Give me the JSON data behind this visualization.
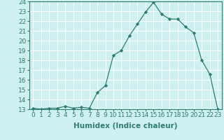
{
  "x": [
    0,
    1,
    2,
    3,
    4,
    5,
    6,
    7,
    8,
    9,
    10,
    11,
    12,
    13,
    14,
    15,
    16,
    17,
    18,
    19,
    20,
    21,
    22,
    23
  ],
  "y": [
    13.1,
    13.0,
    13.1,
    13.1,
    13.3,
    13.1,
    13.2,
    13.1,
    14.7,
    15.4,
    18.5,
    19.0,
    20.5,
    21.7,
    22.9,
    23.9,
    22.7,
    22.2,
    22.2,
    21.4,
    20.8,
    18.0,
    16.6,
    13.0
  ],
  "xlabel": "Humidex (Indice chaleur)",
  "xlim": [
    -0.5,
    23.5
  ],
  "ylim": [
    13,
    24
  ],
  "yticks": [
    13,
    14,
    15,
    16,
    17,
    18,
    19,
    20,
    21,
    22,
    23,
    24
  ],
  "xticks": [
    0,
    1,
    2,
    3,
    4,
    5,
    6,
    7,
    8,
    9,
    10,
    11,
    12,
    13,
    14,
    15,
    16,
    17,
    18,
    19,
    20,
    21,
    22,
    23
  ],
  "line_color": "#2e7d6e",
  "marker": "D",
  "marker_size": 2.2,
  "bg_color": "#cff0f0",
  "grid_color": "#ffffff",
  "label_fontsize": 7.5,
  "tick_fontsize": 6.5,
  "spine_color": "#2e7d6e"
}
